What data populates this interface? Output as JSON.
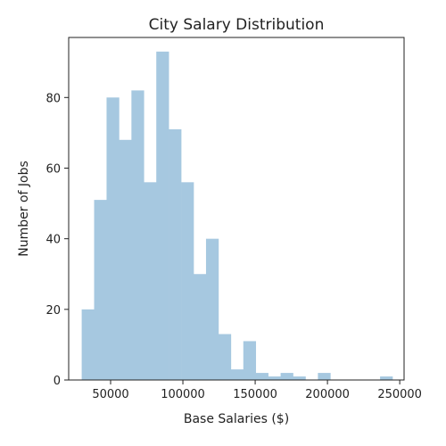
{
  "chart_data": {
    "type": "bar",
    "title": "City Salary Distribution",
    "xlabel": "Base Salaries ($)",
    "ylabel": "Number of Jobs",
    "xlim": [
      21000,
      253000
    ],
    "ylim": [
      0,
      97
    ],
    "xticks": [
      50000,
      100000,
      150000,
      200000,
      250000
    ],
    "yticks": [
      0,
      20,
      40,
      60,
      80
    ],
    "bar_color": "#a6c8e0",
    "grid": false,
    "bins": [
      {
        "x0": 30000,
        "x1": 38600,
        "count": 20
      },
      {
        "x0": 38600,
        "x1": 47200,
        "count": 51
      },
      {
        "x0": 47200,
        "x1": 55800,
        "count": 80
      },
      {
        "x0": 55800,
        "x1": 64400,
        "count": 68
      },
      {
        "x0": 64400,
        "x1": 73000,
        "count": 82
      },
      {
        "x0": 73000,
        "x1": 81600,
        "count": 56
      },
      {
        "x0": 81600,
        "x1": 90200,
        "count": 93
      },
      {
        "x0": 90200,
        "x1": 98800,
        "count": 71
      },
      {
        "x0": 98800,
        "x1": 107400,
        "count": 56
      },
      {
        "x0": 107400,
        "x1": 116000,
        "count": 30
      },
      {
        "x0": 116000,
        "x1": 124600,
        "count": 40
      },
      {
        "x0": 124600,
        "x1": 133200,
        "count": 13
      },
      {
        "x0": 133200,
        "x1": 141800,
        "count": 3
      },
      {
        "x0": 141800,
        "x1": 150400,
        "count": 11
      },
      {
        "x0": 150400,
        "x1": 159000,
        "count": 2
      },
      {
        "x0": 159000,
        "x1": 167600,
        "count": 1
      },
      {
        "x0": 167600,
        "x1": 176200,
        "count": 2
      },
      {
        "x0": 176200,
        "x1": 184800,
        "count": 1
      },
      {
        "x0": 184800,
        "x1": 193400,
        "count": 0
      },
      {
        "x0": 193400,
        "x1": 202000,
        "count": 2
      },
      {
        "x0": 202000,
        "x1": 210600,
        "count": 0
      },
      {
        "x0": 210600,
        "x1": 219200,
        "count": 0
      },
      {
        "x0": 219200,
        "x1": 227800,
        "count": 0
      },
      {
        "x0": 227800,
        "x1": 236400,
        "count": 0
      },
      {
        "x0": 236400,
        "x1": 245000,
        "count": 1
      }
    ]
  }
}
